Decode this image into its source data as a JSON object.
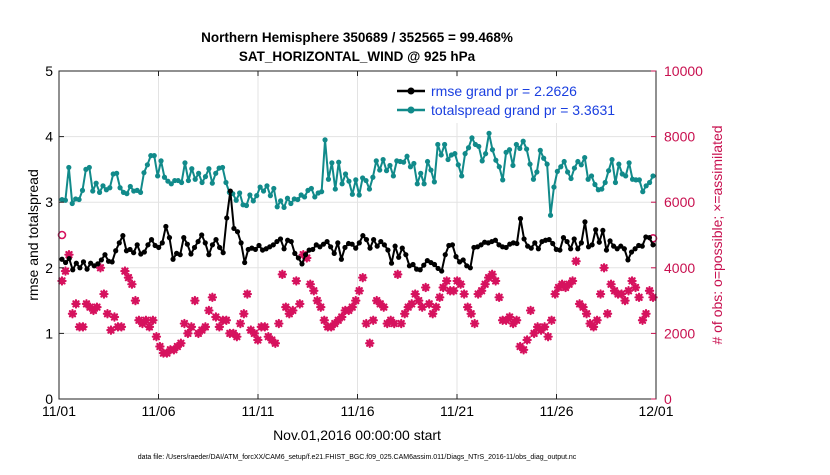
{
  "chart_data": {
    "type": "line",
    "title": "Northern Hemisphere 350689 / 352565 = 99.468%",
    "subtitle": "SAT_HORIZONTAL_WIND @ 925 hPa",
    "xlabel": "Nov.01,2016 00:00:00 start",
    "ylabel_left": "rmse and totalspread",
    "ylabel_right": "# of obs: o=possible; ×=assimilated",
    "footnote": "data file: /Users/raeder/DAI/ATM_forcXX/CAM6_setup/f.e21.FHIST_BGC.f09_025.CAM6assim.011/Diags_NTrS_2016-11/obs_diag_output.nc",
    "x_ticks": [
      "11/01",
      "11/06",
      "11/11",
      "11/16",
      "11/21",
      "11/26",
      "12/01"
    ],
    "xlim_days": [
      0,
      30
    ],
    "ylim_left": [
      0,
      5
    ],
    "y_ticks_left": [
      "0",
      "1",
      "2",
      "3",
      "4",
      "5"
    ],
    "ylim_right": [
      0,
      10000
    ],
    "y_ticks_right": [
      "0",
      "2000",
      "4000",
      "6000",
      "8000",
      "10000"
    ],
    "grid": true,
    "legend_position": "top-right",
    "colors": {
      "rmse": "#000000",
      "spread": "#118a8a",
      "obs": "#d6125e",
      "right_axis": "#c8104f"
    },
    "series": [
      {
        "name": "rmse grand pr = 2.2626",
        "axis": "left",
        "values": [
          2.13,
          2.08,
          2.14,
          1.97,
          2.07,
          2.0,
          2.09,
          1.98,
          2.07,
          2.03,
          2.06,
          2.12,
          2.2,
          2.1,
          2.09,
          2.26,
          2.38,
          2.49,
          2.26,
          2.28,
          2.23,
          2.35,
          2.21,
          2.24,
          2.35,
          2.43,
          2.34,
          2.31,
          2.38,
          2.63,
          2.46,
          2.13,
          2.22,
          2.2,
          2.46,
          2.36,
          2.21,
          2.31,
          2.4,
          2.5,
          2.38,
          2.2,
          2.35,
          2.43,
          2.31,
          2.23,
          2.76,
          3.17,
          2.6,
          2.55,
          2.38,
          2.08,
          2.28,
          2.3,
          2.28,
          2.34,
          2.27,
          2.29,
          2.32,
          2.35,
          2.4,
          2.44,
          2.29,
          2.42,
          2.4,
          2.22,
          2.15,
          2.06,
          2.2,
          2.27,
          2.28,
          2.35,
          2.32,
          2.36,
          2.4,
          2.32,
          2.22,
          2.38,
          2.13,
          2.31,
          2.37,
          2.36,
          2.3,
          2.38,
          2.49,
          2.43,
          2.3,
          2.43,
          2.33,
          2.4,
          2.35,
          2.27,
          2.07,
          2.33,
          2.16,
          2.3,
          2.2,
          2.03,
          2.05,
          1.98,
          1.97,
          2.04,
          2.11,
          2.08,
          2.05,
          1.99,
          1.95,
          2.2,
          2.34,
          2.35,
          2.17,
          2.09,
          2.12,
          2.03,
          2.0,
          2.31,
          2.32,
          2.35,
          2.39,
          2.38,
          2.4,
          2.42,
          2.35,
          2.32,
          2.31,
          2.36,
          2.38,
          2.37,
          2.75,
          2.44,
          2.33,
          2.3,
          2.38,
          2.29,
          2.4,
          2.42,
          2.43,
          2.37,
          2.28,
          2.27,
          2.46,
          2.4,
          2.29,
          2.44,
          2.29,
          2.38,
          2.7,
          2.32,
          2.35,
          2.58,
          2.39,
          2.57,
          2.27,
          2.41,
          2.33,
          2.29,
          2.33,
          2.29,
          2.12,
          2.24,
          2.29,
          2.34,
          2.33,
          2.47,
          2.46,
          2.35
        ],
        "x_start": 0.15,
        "x_end": 29.85
      },
      {
        "name": "totalspread grand pr = 3.3631",
        "axis": "left",
        "values": [
          3.04,
          3.03,
          3.53,
          2.98,
          3.05,
          3.04,
          3.18,
          3.5,
          3.53,
          3.17,
          3.29,
          3.15,
          3.25,
          3.19,
          3.22,
          3.43,
          3.44,
          3.22,
          3.15,
          3.13,
          3.24,
          3.17,
          3.18,
          3.15,
          3.45,
          3.57,
          3.71,
          3.71,
          3.4,
          3.63,
          3.38,
          3.32,
          3.28,
          3.33,
          3.33,
          3.3,
          3.6,
          3.33,
          3.51,
          3.35,
          3.44,
          3.3,
          3.39,
          3.51,
          3.29,
          3.44,
          3.52,
          3.53,
          3.3,
          3.15,
          3.13,
          3.03,
          3.14,
          2.96,
          2.95,
          3.11,
          3.02,
          3.1,
          3.23,
          3.17,
          3.25,
          3.1,
          3.21,
          2.93,
          3.02,
          2.92,
          3.06,
          2.98,
          3.05,
          3.04,
          3.11,
          3.08,
          3.18,
          3.21,
          3.08,
          3.14,
          3.16,
          3.95,
          3.35,
          3.6,
          3.2,
          3.61,
          3.28,
          3.43,
          3.32,
          3.12,
          3.34,
          3.11,
          3.37,
          3.33,
          3.2,
          3.38,
          3.63,
          3.49,
          3.65,
          3.48,
          3.56,
          3.4,
          3.63,
          3.62,
          3.61,
          3.7,
          3.54,
          3.59,
          3.28,
          3.44,
          3.28,
          3.62,
          3.49,
          3.31,
          3.88,
          3.72,
          3.88,
          3.65,
          3.72,
          3.74,
          3.57,
          3.4,
          3.74,
          3.83,
          3.98,
          3.88,
          3.85,
          3.63,
          3.74,
          4.05,
          3.8,
          3.64,
          3.54,
          3.34,
          3.76,
          3.8,
          3.56,
          3.88,
          3.82,
          3.93,
          3.81,
          3.58,
          3.35,
          3.46,
          3.79,
          3.67,
          3.58,
          2.8,
          3.23,
          3.47,
          3.54,
          3.62,
          3.46,
          3.36,
          3.52,
          3.62,
          3.57,
          3.68,
          3.35,
          3.4,
          3.27,
          3.19,
          3.2,
          3.3,
          3.48,
          3.65,
          3.3,
          3.58,
          3.43,
          3.4,
          3.6,
          3.35,
          3.34,
          3.34,
          3.16,
          3.25,
          3.3,
          3.4
        ],
        "x_start": 0.15,
        "x_end": 29.85
      },
      {
        "name": "observations assimilated",
        "axis": "right",
        "marker": "asterisk",
        "values": [
          3600,
          3900,
          4400,
          2600,
          2900,
          2200,
          2200,
          2900,
          2800,
          2700,
          2800,
          4000,
          3200,
          2600,
          2100,
          2500,
          2200,
          2200,
          3900,
          3700,
          3500,
          3000,
          2400,
          2300,
          2400,
          2200,
          2400,
          1900,
          1600,
          1400,
          1400,
          1500,
          1500,
          1600,
          1700,
          2300,
          2000,
          2200,
          3000,
          2000,
          2100,
          2200,
          2700,
          3100,
          2500,
          2200,
          2400,
          2400,
          2000,
          2000,
          1900,
          2300,
          2600,
          3200,
          2100,
          2000,
          1800,
          2200,
          2200,
          1900,
          1800,
          1700,
          2300,
          3800,
          2800,
          2600,
          2700,
          3600,
          2900,
          4400,
          4300,
          3500,
          3300,
          3000,
          2800,
          2400,
          2200,
          2200,
          2300,
          2400,
          2500,
          2700,
          2700,
          2800,
          3000,
          3300,
          3700,
          2300,
          1700,
          2400,
          3000,
          2900,
          2800,
          2300,
          2400,
          2300,
          3800,
          2300,
          2600,
          2800,
          2900,
          3200,
          3000,
          2800,
          3400,
          2900,
          2600,
          2800,
          3100,
          3400,
          3600,
          3300,
          3300,
          3600,
          3500,
          3200,
          2800,
          2600,
          2300,
          3200,
          3300,
          3500,
          3700,
          3800,
          3600,
          3100,
          2400,
          2400,
          2500,
          2300,
          2400,
          1600,
          1500,
          1800,
          2700,
          2000,
          2200,
          2100,
          2200,
          1900,
          2400,
          3200,
          3400,
          3500,
          3400,
          3500,
          3600,
          4200,
          2900,
          2800,
          2600,
          2300,
          2200,
          2400,
          3200,
          4000,
          2600,
          3500,
          3300,
          3200,
          3200,
          3000,
          3300,
          3600,
          3400,
          3100,
          2400,
          2600,
          3300,
          3100
        ],
        "x_start": 0.15,
        "x_end": 29.85
      },
      {
        "name": "observations possible",
        "axis": "right",
        "marker": "circle",
        "x": [
          0.15,
          29.85
        ],
        "values": [
          5000,
          4900
        ]
      }
    ]
  }
}
